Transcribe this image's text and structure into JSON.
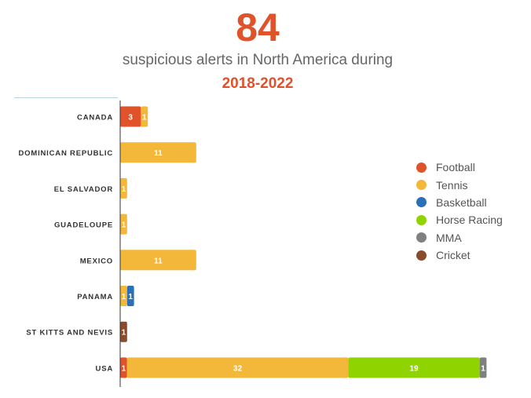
{
  "header": {
    "big_number": "84",
    "subtitle": "suspicious alerts in North America during",
    "period": "2018-2022"
  },
  "legend": [
    {
      "label": "Football",
      "color": "#e0522a"
    },
    {
      "label": "Tennis",
      "color": "#f3b73a"
    },
    {
      "label": "Basketball",
      "color": "#2a70b8"
    },
    {
      "label": "Horse Racing",
      "color": "#8fd400"
    },
    {
      "label": "MMA",
      "color": "#808080"
    },
    {
      "label": "Cricket",
      "color": "#8a4b2a"
    }
  ],
  "chart_data": {
    "type": "bar",
    "orientation": "horizontal",
    "stacked": true,
    "title": "84",
    "subtitle": "suspicious alerts in North America during 2018-2022",
    "categories": [
      "CANADA",
      "DOMINICAN REPUBLIC",
      "EL SALVADOR",
      "GUADELOUPE",
      "MEXICO",
      "PANAMA",
      "ST KITTS AND NEVIS",
      "USA"
    ],
    "series": [
      {
        "name": "Football",
        "color": "#e0522a",
        "values": [
          3,
          0,
          0,
          0,
          0,
          0,
          0,
          1
        ]
      },
      {
        "name": "Tennis",
        "color": "#f3b73a",
        "values": [
          1,
          11,
          1,
          1,
          11,
          1,
          0,
          32
        ]
      },
      {
        "name": "Basketball",
        "color": "#2a70b8",
        "values": [
          0,
          0,
          0,
          0,
          0,
          1,
          0,
          0
        ]
      },
      {
        "name": "Horse Racing",
        "color": "#8fd400",
        "values": [
          0,
          0,
          0,
          0,
          0,
          0,
          0,
          19
        ]
      },
      {
        "name": "MMA",
        "color": "#808080",
        "values": [
          0,
          0,
          0,
          0,
          0,
          0,
          0,
          1
        ]
      },
      {
        "name": "Cricket",
        "color": "#8a4b2a",
        "values": [
          0,
          0,
          0,
          0,
          0,
          0,
          1,
          0
        ]
      }
    ],
    "xlim": [
      0,
      53
    ],
    "legend_position": "right",
    "grid": false
  }
}
